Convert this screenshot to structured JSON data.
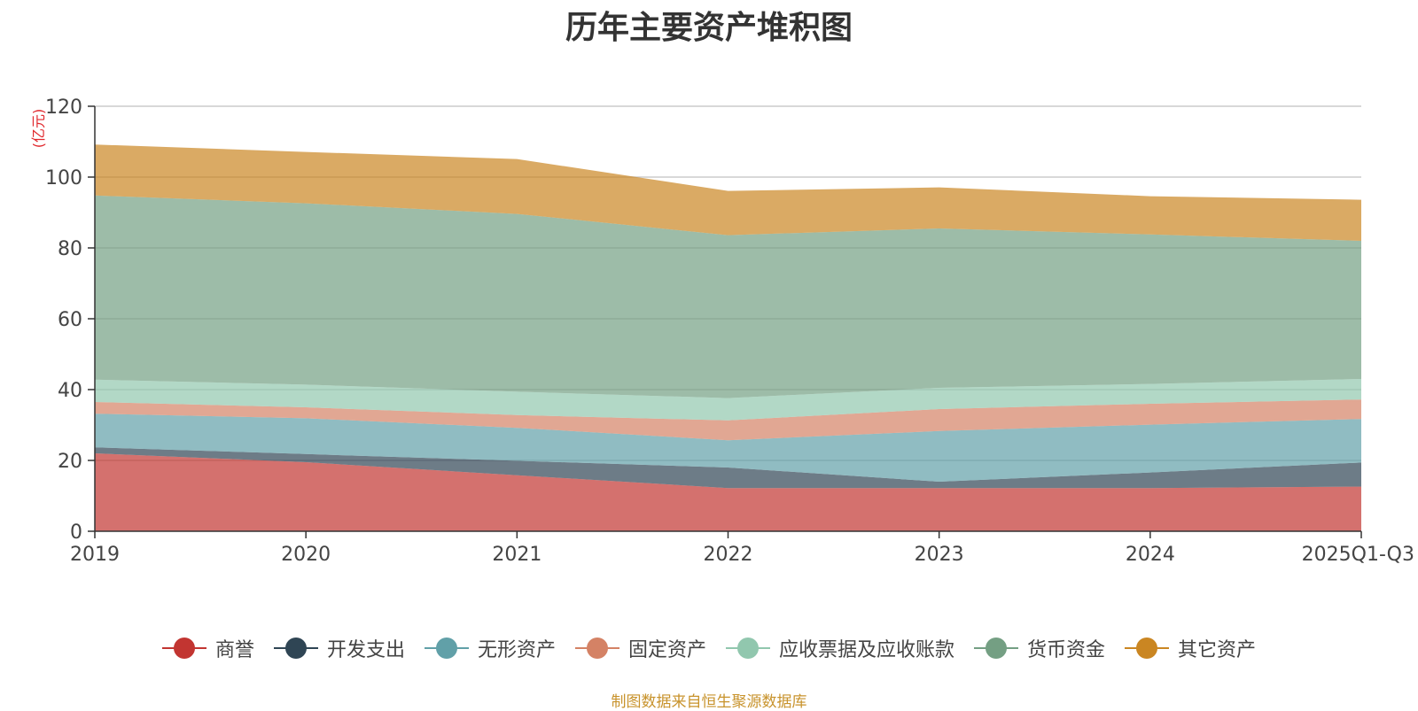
{
  "chart_data": {
    "type": "area",
    "stacked": true,
    "title": "历年主要资产堆积图",
    "ylabel": "(亿元)",
    "xlabel": "",
    "ylim": [
      0,
      120
    ],
    "yticks": [
      0,
      20,
      40,
      60,
      80,
      100,
      120
    ],
    "categories": [
      "2019",
      "2020",
      "2021",
      "2022",
      "2023",
      "2024",
      "2025Q1-Q3"
    ],
    "series": [
      {
        "name": "商誉",
        "color": "#c23531",
        "values": [
          22,
          19.5,
          15.8,
          12.2,
          12.2,
          12.2,
          12.6
        ]
      },
      {
        "name": "开发支出",
        "color": "#2f4554",
        "values": [
          1.7,
          2.3,
          4.1,
          5.8,
          1.8,
          4.4,
          6.8
        ]
      },
      {
        "name": "无形资产",
        "color": "#61a0a8",
        "values": [
          9.5,
          10.1,
          9.3,
          7.7,
          14.3,
          13.5,
          12.3
        ]
      },
      {
        "name": "固定资产",
        "color": "#d48265",
        "values": [
          3.3,
          3.1,
          3.6,
          5.6,
          6.2,
          5.9,
          5.5
        ]
      },
      {
        "name": "应收票据及应收账款",
        "color": "#91c7ae",
        "values": [
          6.3,
          6.4,
          6.6,
          6.3,
          6.0,
          5.6,
          5.8
        ]
      },
      {
        "name": "货币资金",
        "color": "#749f83",
        "values": [
          52.0,
          51.2,
          50.2,
          46.0,
          45.0,
          42.2,
          39.0
        ]
      },
      {
        "name": "其它资产",
        "color": "#ca8622",
        "values": [
          14.4,
          14.5,
          15.5,
          12.5,
          11.6,
          10.8,
          11.6
        ]
      }
    ]
  },
  "source_note": "制图数据来自恒生聚源数据库"
}
